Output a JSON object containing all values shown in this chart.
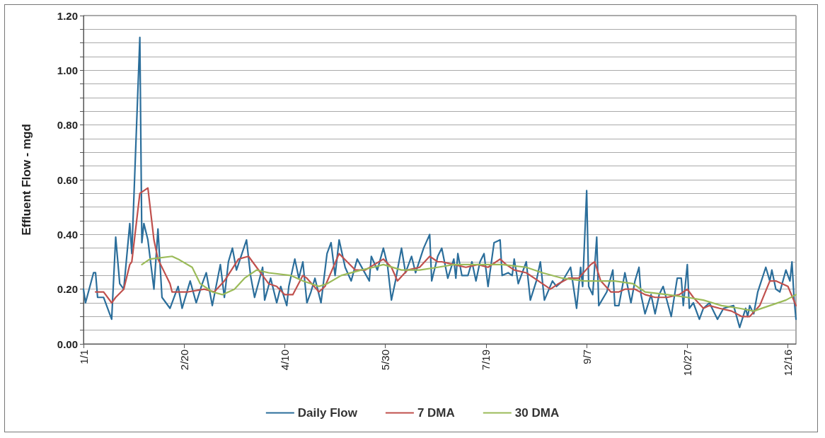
{
  "chart_data": {
    "type": "line",
    "ylabel": "Effluent Flow - mgd",
    "xlim": [
      "--01-01",
      "--12-20"
    ],
    "xticks": [
      {
        "value": "--01-01",
        "label": "1/1"
      },
      {
        "value": "--02-20",
        "label": "2/20"
      },
      {
        "value": "--04-10",
        "label": "4/10"
      },
      {
        "value": "--05-30",
        "label": "5/30"
      },
      {
        "value": "--07-19",
        "label": "7/19"
      },
      {
        "value": "--09-07",
        "label": "9/7"
      },
      {
        "value": "--10-27",
        "label": "10/27"
      },
      {
        "value": "--12-16",
        "label": "12/16"
      }
    ],
    "ylim": [
      0,
      1.2
    ],
    "yticks": [
      {
        "value": 0,
        "label": "0.00"
      },
      {
        "value": 0.05,
        "label": null
      },
      {
        "value": 0.1,
        "label": null
      },
      {
        "value": 0.15,
        "label": null
      },
      {
        "value": 0.2,
        "label": "0.20"
      },
      {
        "value": 0.25,
        "label": null
      },
      {
        "value": 0.3,
        "label": null
      },
      {
        "value": 0.35,
        "label": null
      },
      {
        "value": 0.4,
        "label": "0.40"
      },
      {
        "value": 0.45,
        "label": null
      },
      {
        "value": 0.5,
        "label": null
      },
      {
        "value": 0.55,
        "label": null
      },
      {
        "value": 0.6,
        "label": "0.60"
      },
      {
        "value": 0.65,
        "label": null
      },
      {
        "value": 0.7,
        "label": null
      },
      {
        "value": 0.75,
        "label": null
      },
      {
        "value": 0.8,
        "label": "0.80"
      },
      {
        "value": 0.85,
        "label": null
      },
      {
        "value": 0.9,
        "label": null
      },
      {
        "value": 0.95,
        "label": null
      },
      {
        "value": 1.0,
        "label": "1.00"
      },
      {
        "value": 1.05,
        "label": null
      },
      {
        "value": 1.1,
        "label": null
      },
      {
        "value": 1.15,
        "label": null
      },
      {
        "value": 1.2,
        "label": "1.20"
      }
    ],
    "grid": "y",
    "legend": "bottom",
    "marker": "none",
    "line_style": "solid",
    "series": [
      {
        "name": "Daily Flow",
        "color": "#2b6e9b",
        "x": [
          "--01-01",
          "--01-02",
          "--01-06",
          "--01-07",
          "--01-08",
          "--01-11",
          "--01-15",
          "--01-17",
          "--01-19",
          "--01-21",
          "--01-24",
          "--01-25",
          "--01-29",
          "--01-30",
          "--01-31",
          "--02-02",
          "--02-05",
          "--02-07",
          "--02-09",
          "--02-13",
          "--02-17",
          "--02-19",
          "--02-23",
          "--02-26",
          "--02-29",
          "--03-02",
          "--03-05",
          "--03-09",
          "--03-11",
          "--03-13",
          "--03-15",
          "--03-17",
          "--03-22",
          "--03-24",
          "--03-26",
          "--03-30",
          "--03-31",
          "--04-03",
          "--04-06",
          "--04-08",
          "--04-11",
          "--04-12",
          "--04-15",
          "--04-17",
          "--04-19",
          "--04-21",
          "--04-23",
          "--04-25",
          "--04-28",
          "--05-01",
          "--05-03",
          "--05-05",
          "--05-07",
          "--05-10",
          "--05-13",
          "--05-16",
          "--05-19",
          "--05-22",
          "--05-23",
          "--05-26",
          "--05-29",
          "--05-31",
          "--06-02",
          "--06-04",
          "--06-07",
          "--06-09",
          "--06-12",
          "--06-14",
          "--06-18",
          "--06-21",
          "--06-22",
          "--06-25",
          "--06-27",
          "--06-30",
          "--07-03",
          "--07-04",
          "--07-05",
          "--07-07",
          "--07-10",
          "--07-12",
          "--07-14",
          "--07-16",
          "--07-18",
          "--07-20",
          "--07-23",
          "--07-26",
          "--07-27",
          "--07-30",
          "--08-01",
          "--08-02",
          "--08-04",
          "--08-08",
          "--08-10",
          "--08-13",
          "--08-15",
          "--08-17",
          "--08-21",
          "--08-23",
          "--08-26",
          "--08-30",
          "--09-02",
          "--09-04",
          "--09-05",
          "--09-07",
          "--09-08",
          "--09-10",
          "--09-12",
          "--09-13",
          "--09-17",
          "--09-20",
          "--09-21",
          "--09-23",
          "--09-26",
          "--09-29",
          "--10-01",
          "--10-03",
          "--10-04",
          "--10-06",
          "--10-09",
          "--10-11",
          "--10-13",
          "--10-15",
          "--10-19",
          "--10-22",
          "--10-24",
          "--10-25",
          "--10-27",
          "--10-28",
          "--10-30",
          "--11-02",
          "--11-04",
          "--11-07",
          "--11-11",
          "--11-14",
          "--11-19",
          "--11-22",
          "--11-25",
          "--11-26",
          "--11-27",
          "--11-29",
          "--12-01",
          "--12-05",
          "--12-07",
          "--12-08",
          "--12-10",
          "--12-12",
          "--12-15",
          "--12-17",
          "--12-18",
          "--12-19",
          "--12-20"
        ],
        "values": [
          0.2,
          0.15,
          0.26,
          0.26,
          0.17,
          0.17,
          0.09,
          0.39,
          0.22,
          0.2,
          0.44,
          0.33,
          1.12,
          0.37,
          0.44,
          0.38,
          0.2,
          0.42,
          0.17,
          0.13,
          0.21,
          0.13,
          0.23,
          0.15,
          0.22,
          0.26,
          0.14,
          0.29,
          0.17,
          0.3,
          0.35,
          0.27,
          0.38,
          0.25,
          0.17,
          0.28,
          0.16,
          0.24,
          0.15,
          0.21,
          0.14,
          0.21,
          0.31,
          0.24,
          0.3,
          0.15,
          0.19,
          0.24,
          0.15,
          0.33,
          0.37,
          0.25,
          0.38,
          0.28,
          0.23,
          0.31,
          0.27,
          0.23,
          0.32,
          0.27,
          0.35,
          0.29,
          0.16,
          0.23,
          0.35,
          0.26,
          0.32,
          0.26,
          0.35,
          0.4,
          0.23,
          0.32,
          0.35,
          0.24,
          0.31,
          0.24,
          0.33,
          0.25,
          0.25,
          0.3,
          0.23,
          0.3,
          0.33,
          0.21,
          0.37,
          0.38,
          0.25,
          0.26,
          0.25,
          0.31,
          0.22,
          0.3,
          0.16,
          0.23,
          0.3,
          0.16,
          0.23,
          0.21,
          0.23,
          0.28,
          0.13,
          0.28,
          0.21,
          0.56,
          0.21,
          0.18,
          0.39,
          0.14,
          0.19,
          0.27,
          0.14,
          0.14,
          0.26,
          0.15,
          0.23,
          0.28,
          0.18,
          0.11,
          0.18,
          0.11,
          0.18,
          0.21,
          0.1,
          0.24,
          0.24,
          0.14,
          0.29,
          0.13,
          0.15,
          0.09,
          0.13,
          0.15,
          0.09,
          0.13,
          0.14,
          0.06,
          0.13,
          0.1,
          0.14,
          0.11,
          0.19,
          0.28,
          0.23,
          0.27,
          0.2,
          0.19,
          0.27,
          0.23,
          0.3,
          0.17,
          0.09
        ]
      },
      {
        "name": "7 DMA",
        "color": "#c0504d",
        "x": [
          "--01-07",
          "--01-11",
          "--01-15",
          "--01-17",
          "--01-21",
          "--01-24",
          "--01-25",
          "--01-29",
          "--02-02",
          "--02-05",
          "--02-07",
          "--02-13",
          "--02-14",
          "--02-22",
          "--03-01",
          "--03-06",
          "--03-11",
          "--03-18",
          "--03-23",
          "--03-27",
          "--03-30",
          "--04-02",
          "--04-06",
          "--04-10",
          "--04-14",
          "--04-19",
          "--04-21",
          "--04-27",
          "--04-30",
          "--05-07",
          "--05-11",
          "--05-15",
          "--05-20",
          "--05-29",
          "--06-02",
          "--06-05",
          "--06-10",
          "--06-16",
          "--06-21",
          "--06-25",
          "--06-27",
          "--07-03",
          "--07-09",
          "--07-15",
          "--07-20",
          "--07-26",
          "--07-29",
          "--08-02",
          "--08-08",
          "--08-12",
          "--08-16",
          "--08-20",
          "--08-24",
          "--08-29",
          "--09-03",
          "--09-09",
          "--09-11",
          "--09-14",
          "--09-19",
          "--09-23",
          "--09-26",
          "--10-01",
          "--10-06",
          "--10-11",
          "--10-17",
          "--10-23",
          "--10-27",
          "--10-30",
          "--11-04",
          "--11-07",
          "--11-12",
          "--11-18",
          "--11-23",
          "--11-27",
          "--12-02",
          "--12-07",
          "--12-10",
          "--12-16",
          "--12-20"
        ],
        "values": [
          0.19,
          0.19,
          0.15,
          0.17,
          0.2,
          0.29,
          0.3,
          0.55,
          0.57,
          0.38,
          0.31,
          0.22,
          0.19,
          0.19,
          0.2,
          0.19,
          0.23,
          0.31,
          0.32,
          0.28,
          0.25,
          0.22,
          0.21,
          0.18,
          0.18,
          0.25,
          0.24,
          0.19,
          0.21,
          0.33,
          0.3,
          0.27,
          0.27,
          0.31,
          0.28,
          0.23,
          0.27,
          0.28,
          0.32,
          0.3,
          0.3,
          0.29,
          0.28,
          0.29,
          0.28,
          0.31,
          0.29,
          0.27,
          0.26,
          0.24,
          0.22,
          0.2,
          0.22,
          0.24,
          0.24,
          0.29,
          0.3,
          0.23,
          0.19,
          0.19,
          0.2,
          0.2,
          0.18,
          0.17,
          0.17,
          0.18,
          0.2,
          0.17,
          0.13,
          0.14,
          0.13,
          0.12,
          0.1,
          0.1,
          0.14,
          0.23,
          0.23,
          0.21,
          0.14
        ]
      },
      {
        "name": "30 DMA",
        "color": "#9bbb59",
        "x": [
          "--01-30",
          "--02-03",
          "--02-14",
          "--02-17",
          "--02-24",
          "--02-28",
          "--03-05",
          "--03-10",
          "--03-16",
          "--03-21",
          "--03-27",
          "--04-02",
          "--04-13",
          "--04-19",
          "--04-27",
          "--05-01",
          "--05-08",
          "--05-18",
          "--05-24",
          "--05-29",
          "--06-07",
          "--06-16",
          "--06-25",
          "--07-03",
          "--07-15",
          "--07-27",
          "--08-08",
          "--08-16",
          "--08-26",
          "--09-06",
          "--09-21",
          "--09-30",
          "--10-06",
          "--10-17",
          "--10-27",
          "--11-04",
          "--11-13",
          "--11-22",
          "--11-29",
          "--12-07",
          "--12-15",
          "--12-20"
        ],
        "values": [
          0.29,
          0.31,
          0.32,
          0.31,
          0.28,
          0.22,
          0.19,
          0.18,
          0.2,
          0.24,
          0.27,
          0.26,
          0.25,
          0.23,
          0.21,
          0.22,
          0.25,
          0.27,
          0.28,
          0.29,
          0.27,
          0.27,
          0.28,
          0.29,
          0.29,
          0.29,
          0.28,
          0.26,
          0.24,
          0.23,
          0.23,
          0.22,
          0.19,
          0.18,
          0.17,
          0.16,
          0.14,
          0.13,
          0.12,
          0.14,
          0.16,
          0.18
        ]
      }
    ]
  }
}
